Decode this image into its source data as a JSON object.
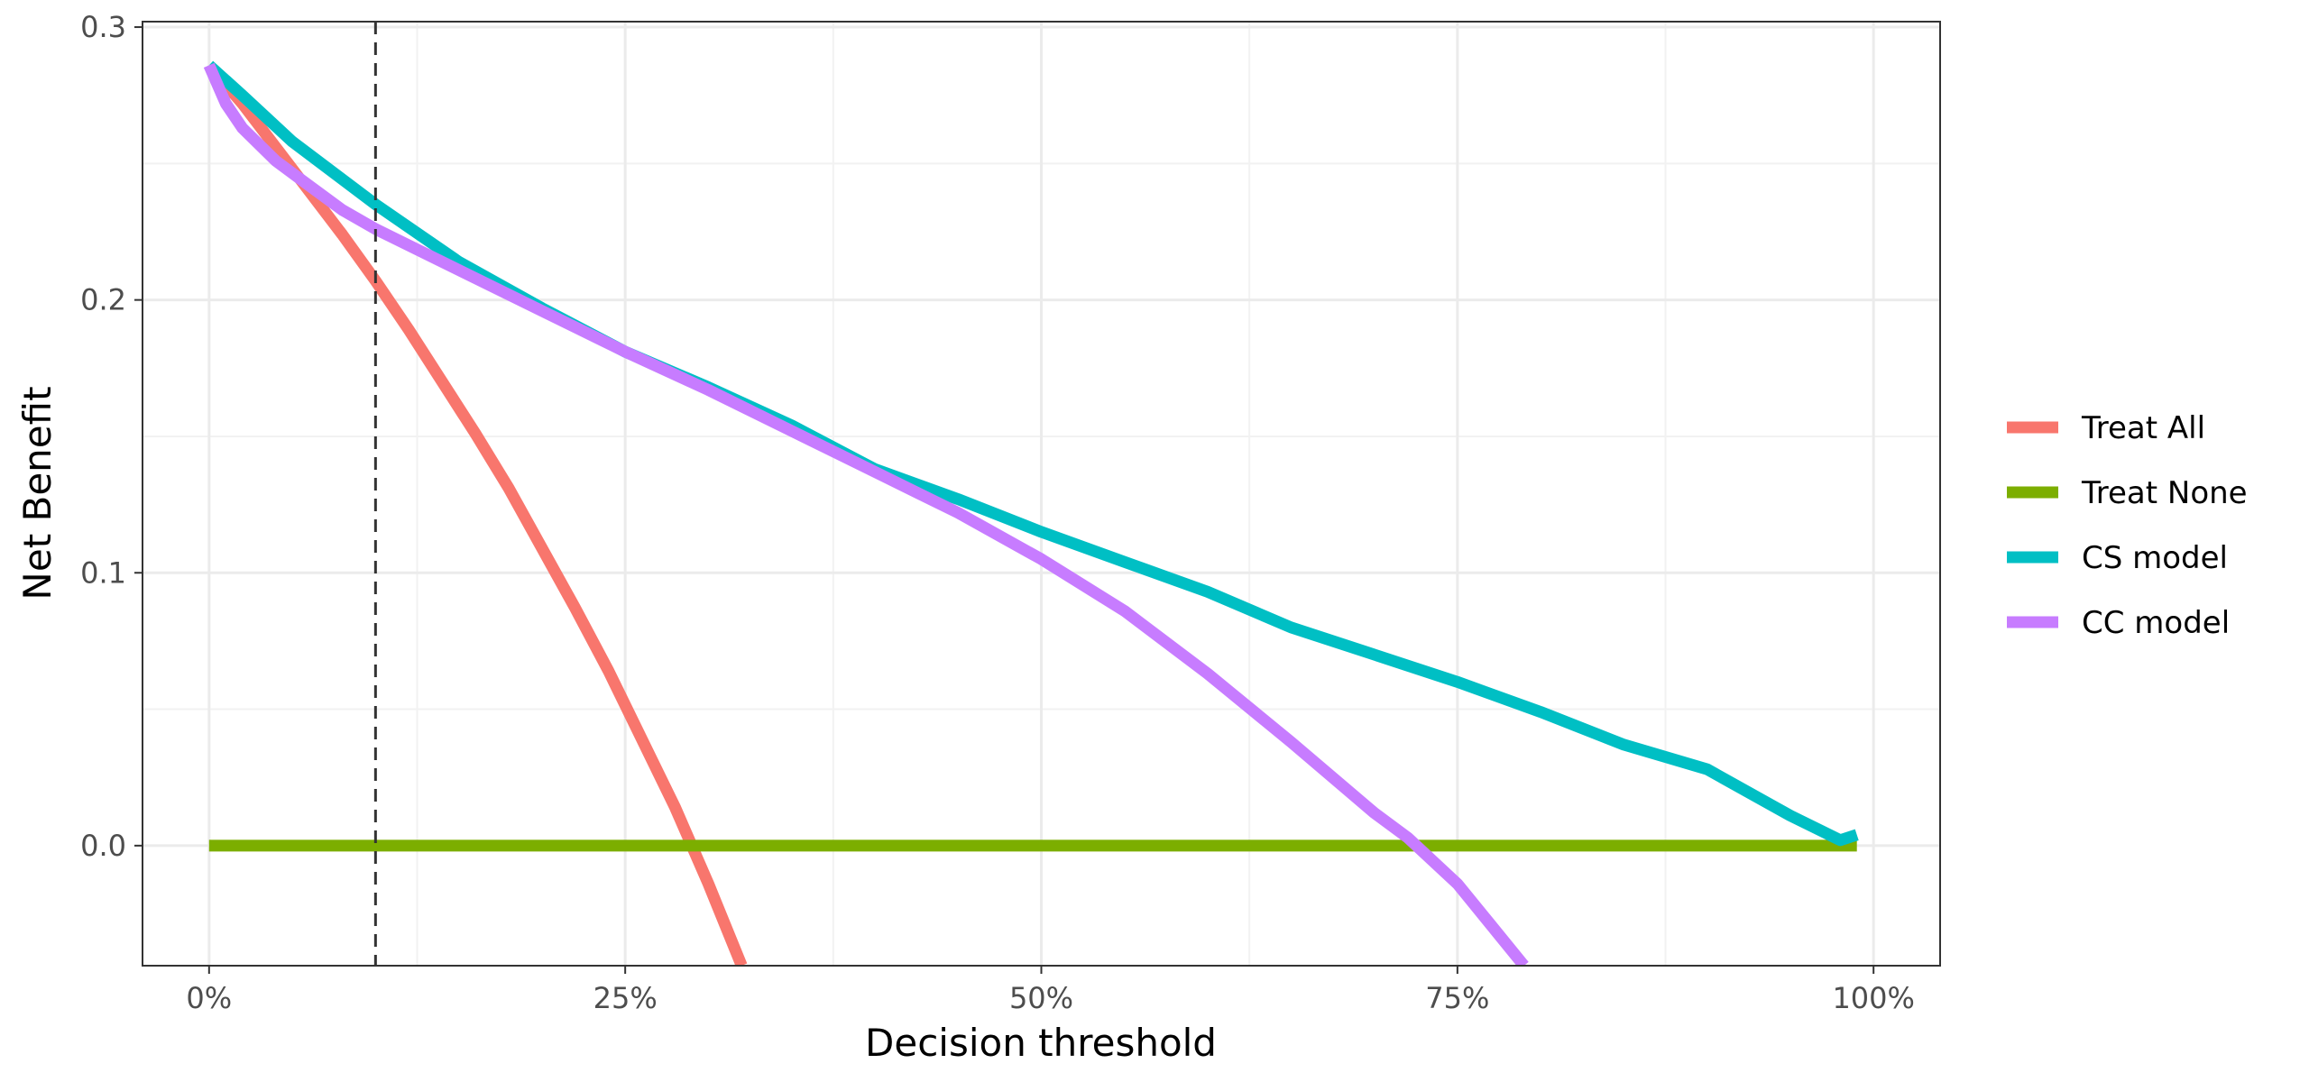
{
  "chart_data": {
    "type": "line",
    "xlabel": "Decision threshold",
    "ylabel": "Net Benefit",
    "xlim": [
      -0.04,
      1.04
    ],
    "ylim": [
      -0.044,
      0.302
    ],
    "x_ticks": [
      0,
      0.25,
      0.5,
      0.75,
      1.0
    ],
    "x_tick_labels": [
      "0%",
      "25%",
      "50%",
      "75%",
      "100%"
    ],
    "y_ticks": [
      0.0,
      0.1,
      0.2,
      0.3
    ],
    "y_tick_labels": [
      "0.0",
      "0.1",
      "0.2",
      "0.3"
    ],
    "grid": true,
    "legend_position": "right",
    "reference_line": {
      "orientation": "vertical",
      "x": 0.1,
      "style": "dashed"
    },
    "series": [
      {
        "name": "Treat All",
        "color": "#F8766D",
        "x": [
          0.0,
          0.02,
          0.04,
          0.06,
          0.08,
          0.1,
          0.12,
          0.14,
          0.16,
          0.18,
          0.2,
          0.22,
          0.24,
          0.26,
          0.28,
          0.3,
          0.32
        ],
        "y": [
          0.286,
          0.272,
          0.256,
          0.24,
          0.224,
          0.207,
          0.189,
          0.17,
          0.151,
          0.131,
          0.109,
          0.087,
          0.064,
          0.039,
          0.014,
          -0.014,
          -0.044
        ]
      },
      {
        "name": "Treat None",
        "color": "#7CAE00",
        "x": [
          0.0,
          0.99
        ],
        "y": [
          0.0,
          0.0
        ]
      },
      {
        "name": "CS model",
        "color": "#00BFC4",
        "x": [
          0.0,
          0.02,
          0.05,
          0.1,
          0.15,
          0.2,
          0.25,
          0.3,
          0.35,
          0.4,
          0.45,
          0.5,
          0.55,
          0.6,
          0.65,
          0.7,
          0.75,
          0.8,
          0.85,
          0.9,
          0.95,
          0.97,
          0.98,
          0.99
        ],
        "y": [
          0.286,
          0.275,
          0.258,
          0.235,
          0.214,
          0.197,
          0.181,
          0.168,
          0.154,
          0.138,
          0.127,
          0.115,
          0.104,
          0.093,
          0.08,
          0.07,
          0.06,
          0.049,
          0.037,
          0.028,
          0.011,
          0.005,
          0.002,
          0.004
        ]
      },
      {
        "name": "CC model",
        "color": "#C77CFF",
        "x": [
          0.0,
          0.01,
          0.02,
          0.04,
          0.06,
          0.08,
          0.1,
          0.15,
          0.2,
          0.25,
          0.3,
          0.35,
          0.4,
          0.45,
          0.5,
          0.55,
          0.6,
          0.65,
          0.7,
          0.72,
          0.75,
          0.77,
          0.79
        ],
        "y": [
          0.286,
          0.272,
          0.263,
          0.251,
          0.242,
          0.233,
          0.226,
          0.211,
          0.196,
          0.181,
          0.167,
          0.152,
          0.137,
          0.122,
          0.105,
          0.086,
          0.063,
          0.038,
          0.012,
          0.003,
          -0.014,
          -0.029,
          -0.044
        ]
      }
    ]
  }
}
